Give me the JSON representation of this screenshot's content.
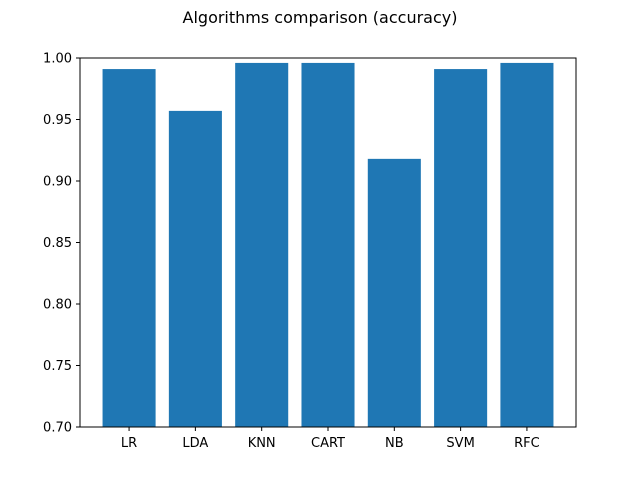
{
  "chart_data": {
    "type": "bar",
    "title": "Algorithms comparison (accuracy)",
    "xlabel": "",
    "ylabel": "",
    "categories": [
      "LR",
      "LDA",
      "KNN",
      "CART",
      "NB",
      "SVM",
      "RFC"
    ],
    "values": [
      0.991,
      0.957,
      0.996,
      0.996,
      0.918,
      0.991,
      0.996
    ],
    "ylim": [
      0.7,
      1.0
    ],
    "yticks": [
      "0.70",
      "0.75",
      "0.80",
      "0.85",
      "0.90",
      "0.95",
      "1.00"
    ],
    "grid": false,
    "legend": "none",
    "bar_color": "#1f77b4"
  }
}
